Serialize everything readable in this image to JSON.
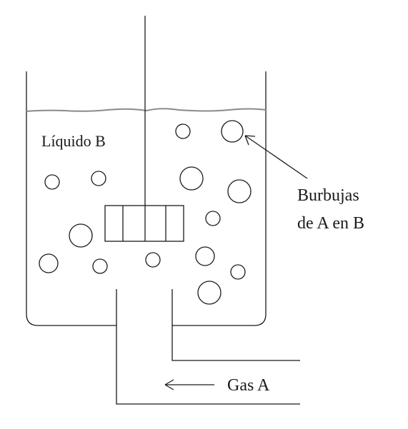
{
  "labels": {
    "liquid": "Líquido B",
    "bubbles_line1": "Burbujas",
    "bubbles_line2": "de A en B",
    "gas": "Gas A"
  },
  "colors": {
    "line": "#1a1a1a",
    "surface": "#8a8a8a",
    "background": "#ffffff"
  }
}
